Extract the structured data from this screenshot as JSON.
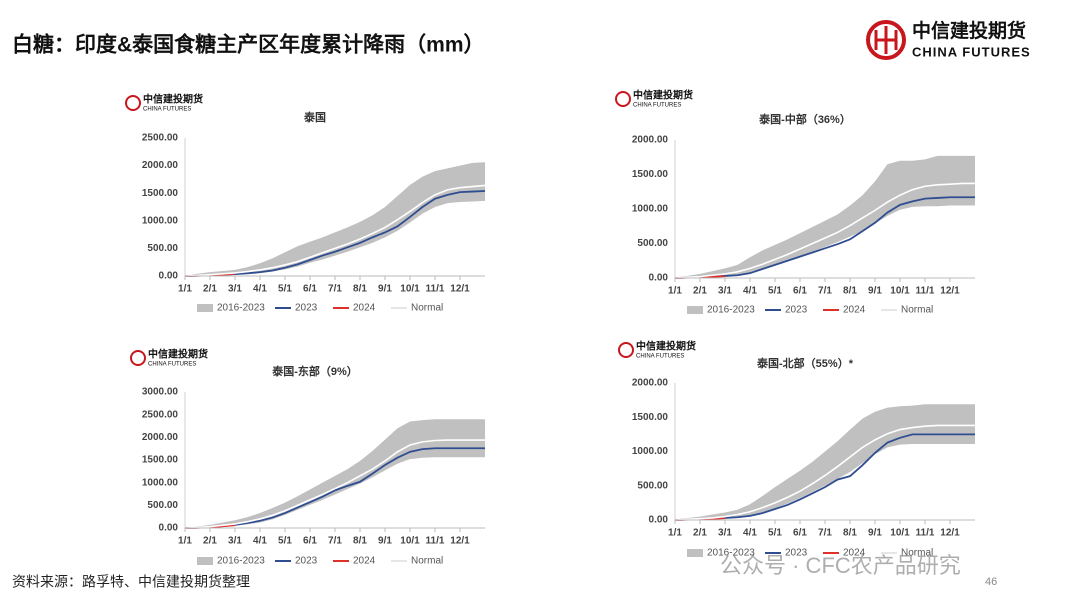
{
  "header": {
    "title": "白糖：印度&泰国食糖主产区年度累计降雨（mm）",
    "logo_cn": "中信建投期货",
    "logo_en": "CHINA FUTURES"
  },
  "logo": {
    "cn": "中信建投期货",
    "en": "CHINA FUTURES"
  },
  "footer": {
    "source": "资料来源：路孚特、中信建投期货整理",
    "page": "46",
    "watermark": "公众号 · CFC农产品研究"
  },
  "chart_data": [
    {
      "type": "line",
      "title": "泰国",
      "x": [
        0,
        0.5,
        1,
        1.5,
        2,
        2.5,
        3,
        3.5,
        4,
        4.5,
        5,
        5.5,
        6,
        6.5,
        7,
        7.5,
        8,
        8.5,
        9,
        9.5,
        10,
        10.5,
        11,
        11.5,
        12
      ],
      "xlim": [
        0,
        12
      ],
      "xticks": [
        {
          "value": 0,
          "label": "1/1"
        },
        {
          "value": 1,
          "label": "2/1"
        },
        {
          "value": 2,
          "label": "3/1"
        },
        {
          "value": 3,
          "label": "4/1"
        },
        {
          "value": 4,
          "label": "5/1"
        },
        {
          "value": 5,
          "label": "6/1"
        },
        {
          "value": 6,
          "label": "7/1"
        },
        {
          "value": 7,
          "label": "8/1"
        },
        {
          "value": 8,
          "label": "9/1"
        },
        {
          "value": 9,
          "label": "10/1"
        },
        {
          "value": 10,
          "label": "11/1"
        },
        {
          "value": 11,
          "label": "12/1"
        }
      ],
      "ylim": [
        0,
        2500
      ],
      "yticks": [
        {
          "value": 0,
          "label": "0.00"
        },
        {
          "value": 500,
          "label": "500.00"
        },
        {
          "value": 1000,
          "label": "1000.00"
        },
        {
          "value": 1500,
          "label": "1500.00"
        },
        {
          "value": 2000,
          "label": "2000.00"
        },
        {
          "value": 2500,
          "label": "2500.00"
        }
      ],
      "band": {
        "name": "2016-2023",
        "color": "#c0c0c0",
        "low": [
          0,
          0,
          5,
          10,
          20,
          30,
          50,
          80,
          120,
          170,
          240,
          300,
          370,
          440,
          520,
          600,
          700,
          820,
          970,
          1130,
          1250,
          1320,
          1340,
          1350,
          1360
        ],
        "high": [
          0,
          40,
          70,
          90,
          110,
          160,
          230,
          320,
          430,
          540,
          620,
          700,
          790,
          880,
          980,
          1100,
          1250,
          1450,
          1650,
          1800,
          1900,
          1950,
          2000,
          2050,
          2060
        ]
      },
      "series": [
        {
          "name": "2023",
          "color": "#2f4d91",
          "values": [
            0,
            5,
            15,
            25,
            35,
            50,
            70,
            100,
            150,
            210,
            290,
            370,
            440,
            520,
            600,
            700,
            790,
            900,
            1070,
            1250,
            1400,
            1470,
            1520,
            1530,
            1540
          ]
        },
        {
          "name": "2024",
          "color": "#e0302a",
          "values": [
            0,
            5,
            15,
            25,
            40,
            null,
            null,
            null,
            null,
            null,
            null,
            null,
            null,
            null,
            null,
            null,
            null,
            null,
            null,
            null,
            null,
            null,
            null,
            null,
            null
          ]
        },
        {
          "name": "Normal",
          "color": "#ffffff",
          "values": [
            0,
            10,
            25,
            40,
            55,
            80,
            110,
            150,
            200,
            260,
            340,
            420,
            500,
            580,
            670,
            770,
            880,
            1020,
            1170,
            1330,
            1470,
            1560,
            1600,
            1620,
            1640
          ]
        }
      ]
    },
    {
      "type": "line",
      "title": "泰国-中部（36%）",
      "x": [
        0,
        0.5,
        1,
        1.5,
        2,
        2.5,
        3,
        3.5,
        4,
        4.5,
        5,
        5.5,
        6,
        6.5,
        7,
        7.5,
        8,
        8.5,
        9,
        9.5,
        10,
        10.5,
        11,
        11.5,
        12
      ],
      "xlim": [
        0,
        12
      ],
      "xticks": [
        {
          "value": 0,
          "label": "1/1"
        },
        {
          "value": 1,
          "label": "2/1"
        },
        {
          "value": 2,
          "label": "3/1"
        },
        {
          "value": 3,
          "label": "4/1"
        },
        {
          "value": 4,
          "label": "5/1"
        },
        {
          "value": 5,
          "label": "6/1"
        },
        {
          "value": 6,
          "label": "7/1"
        },
        {
          "value": 7,
          "label": "8/1"
        },
        {
          "value": 8,
          "label": "9/1"
        },
        {
          "value": 9,
          "label": "10/1"
        },
        {
          "value": 10,
          "label": "11/1"
        },
        {
          "value": 11,
          "label": "12/1"
        }
      ],
      "ylim": [
        0,
        2000
      ],
      "yticks": [
        {
          "value": 0,
          "label": "0.00"
        },
        {
          "value": 500,
          "label": "500.00"
        },
        {
          "value": 1000,
          "label": "1000.00"
        },
        {
          "value": 1500,
          "label": "1500.00"
        },
        {
          "value": 2000,
          "label": "2000.00"
        }
      ],
      "band": {
        "name": "2016-2023",
        "color": "#c0c0c0",
        "low": [
          0,
          0,
          5,
          10,
          20,
          40,
          70,
          120,
          180,
          240,
          310,
          380,
          450,
          520,
          600,
          680,
          790,
          900,
          990,
          1030,
          1040,
          1040,
          1050,
          1050,
          1050
        ],
        "high": [
          0,
          30,
          60,
          100,
          140,
          190,
          300,
          400,
          480,
          560,
          650,
          740,
          830,
          920,
          1050,
          1200,
          1400,
          1650,
          1700,
          1700,
          1720,
          1770,
          1770,
          1770,
          1770
        ]
      },
      "series": [
        {
          "name": "2023",
          "color": "#2f4d91",
          "values": [
            0,
            5,
            10,
            20,
            30,
            40,
            70,
            130,
            190,
            250,
            310,
            370,
            430,
            490,
            560,
            680,
            800,
            950,
            1060,
            1110,
            1150,
            1160,
            1170,
            1170,
            1170
          ]
        },
        {
          "name": "2024",
          "color": "#e0302a",
          "values": [
            0,
            5,
            10,
            20,
            25,
            null,
            null,
            null,
            null,
            null,
            null,
            null,
            null,
            null,
            null,
            null,
            null,
            null,
            null,
            null,
            null,
            null,
            null,
            null,
            null
          ]
        },
        {
          "name": "Normal",
          "color": "#ffffff",
          "values": [
            0,
            10,
            20,
            40,
            60,
            90,
            140,
            200,
            270,
            340,
            420,
            500,
            580,
            660,
            760,
            870,
            980,
            1100,
            1200,
            1280,
            1330,
            1350,
            1360,
            1370,
            1370
          ]
        }
      ]
    },
    {
      "type": "line",
      "title": "泰国-东部（9%）",
      "x": [
        0,
        0.5,
        1,
        1.5,
        2,
        2.5,
        3,
        3.5,
        4,
        4.5,
        5,
        5.5,
        6,
        6.5,
        7,
        7.5,
        8,
        8.5,
        9,
        9.5,
        10,
        10.5,
        11,
        11.5,
        12
      ],
      "xlim": [
        0,
        12
      ],
      "xticks": [
        {
          "value": 0,
          "label": "1/1"
        },
        {
          "value": 1,
          "label": "2/1"
        },
        {
          "value": 2,
          "label": "3/1"
        },
        {
          "value": 3,
          "label": "4/1"
        },
        {
          "value": 4,
          "label": "5/1"
        },
        {
          "value": 5,
          "label": "6/1"
        },
        {
          "value": 6,
          "label": "7/1"
        },
        {
          "value": 7,
          "label": "8/1"
        },
        {
          "value": 8,
          "label": "9/1"
        },
        {
          "value": 9,
          "label": "10/1"
        },
        {
          "value": 10,
          "label": "11/1"
        },
        {
          "value": 11,
          "label": "12/1"
        }
      ],
      "ylim": [
        0,
        3000
      ],
      "yticks": [
        {
          "value": 0,
          "label": "0.00"
        },
        {
          "value": 500,
          "label": "500.00"
        },
        {
          "value": 1000,
          "label": "1000.00"
        },
        {
          "value": 1500,
          "label": "1500.00"
        },
        {
          "value": 2000,
          "label": "2000.00"
        },
        {
          "value": 2500,
          "label": "2500.00"
        },
        {
          "value": 3000,
          "label": "3000.00"
        }
      ],
      "band": {
        "name": "2016-2023",
        "color": "#c0c0c0",
        "low": [
          0,
          0,
          10,
          30,
          50,
          80,
          120,
          190,
          290,
          400,
          510,
          620,
          740,
          860,
          980,
          1120,
          1270,
          1420,
          1520,
          1550,
          1560,
          1560,
          1560,
          1560,
          1560
        ],
        "high": [
          0,
          30,
          70,
          120,
          170,
          240,
          330,
          440,
          560,
          700,
          850,
          1000,
          1150,
          1300,
          1480,
          1700,
          1950,
          2200,
          2350,
          2380,
          2400,
          2400,
          2400,
          2400,
          2400
        ]
      },
      "series": [
        {
          "name": "2023",
          "color": "#2f4d91",
          "values": [
            0,
            5,
            20,
            40,
            70,
            110,
            160,
            230,
            330,
            450,
            570,
            690,
            830,
            930,
            1020,
            1200,
            1390,
            1550,
            1680,
            1740,
            1760,
            1760,
            1760,
            1760,
            1760
          ]
        },
        {
          "name": "2024",
          "color": "#e0302a",
          "values": [
            0,
            5,
            20,
            40,
            60,
            null,
            null,
            null,
            null,
            null,
            null,
            null,
            null,
            null,
            null,
            null,
            null,
            null,
            null,
            null,
            null,
            null,
            null,
            null,
            null
          ]
        },
        {
          "name": "Normal",
          "color": "#ffffff",
          "values": [
            0,
            10,
            30,
            60,
            90,
            140,
            200,
            280,
            380,
            500,
            620,
            740,
            870,
            1000,
            1150,
            1300,
            1480,
            1680,
            1830,
            1900,
            1930,
            1940,
            1940,
            1940,
            1940
          ]
        }
      ]
    },
    {
      "type": "line",
      "title": "泰国-北部（55%）*",
      "x": [
        0,
        0.5,
        1,
        1.5,
        2,
        2.5,
        3,
        3.5,
        4,
        4.5,
        5,
        5.5,
        6,
        6.5,
        7,
        7.5,
        8,
        8.5,
        9,
        9.5,
        10,
        10.5,
        11,
        11.5,
        12
      ],
      "xlim": [
        0,
        12
      ],
      "xticks": [
        {
          "value": 0,
          "label": "1/1"
        },
        {
          "value": 1,
          "label": "2/1"
        },
        {
          "value": 2,
          "label": "3/1"
        },
        {
          "value": 3,
          "label": "4/1"
        },
        {
          "value": 4,
          "label": "5/1"
        },
        {
          "value": 5,
          "label": "6/1"
        },
        {
          "value": 6,
          "label": "7/1"
        },
        {
          "value": 7,
          "label": "8/1"
        },
        {
          "value": 8,
          "label": "9/1"
        },
        {
          "value": 9,
          "label": "10/1"
        },
        {
          "value": 10,
          "label": "11/1"
        },
        {
          "value": 11,
          "label": "12/1"
        }
      ],
      "ylim": [
        0,
        2000
      ],
      "yticks": [
        {
          "value": 0,
          "label": "0.00"
        },
        {
          "value": 500,
          "label": "500.00"
        },
        {
          "value": 1000,
          "label": "1000.00"
        },
        {
          "value": 1500,
          "label": "1500.00"
        },
        {
          "value": 2000,
          "label": "2000.00"
        }
      ],
      "band": {
        "name": "2016-2023",
        "color": "#c0c0c0",
        "low": [
          0,
          0,
          5,
          10,
          20,
          40,
          70,
          110,
          170,
          240,
          320,
          410,
          500,
          600,
          700,
          830,
          960,
          1060,
          1100,
          1110,
          1110,
          1110,
          1110,
          1110,
          1110
        ],
        "high": [
          0,
          30,
          50,
          80,
          110,
          150,
          230,
          350,
          480,
          600,
          720,
          850,
          1000,
          1150,
          1320,
          1480,
          1580,
          1640,
          1660,
          1670,
          1690,
          1690,
          1690,
          1690,
          1690
        ]
      },
      "series": [
        {
          "name": "2023",
          "color": "#2f4d91",
          "values": [
            0,
            5,
            10,
            20,
            30,
            40,
            60,
            100,
            160,
            220,
            300,
            390,
            480,
            590,
            640,
            800,
            980,
            1130,
            1200,
            1250,
            1250,
            1250,
            1250,
            1250,
            1250
          ]
        },
        {
          "name": "2024",
          "color": "#e0302a",
          "values": [
            0,
            5,
            10,
            20,
            25,
            null,
            null,
            null,
            null,
            null,
            null,
            null,
            null,
            null,
            null,
            null,
            null,
            null,
            null,
            null,
            null,
            null,
            null,
            null,
            null
          ]
        },
        {
          "name": "Normal",
          "color": "#ffffff",
          "values": [
            0,
            10,
            20,
            30,
            50,
            80,
            120,
            180,
            250,
            330,
            420,
            530,
            650,
            780,
            920,
            1060,
            1170,
            1260,
            1320,
            1350,
            1370,
            1380,
            1380,
            1380,
            1380
          ]
        }
      ]
    }
  ]
}
